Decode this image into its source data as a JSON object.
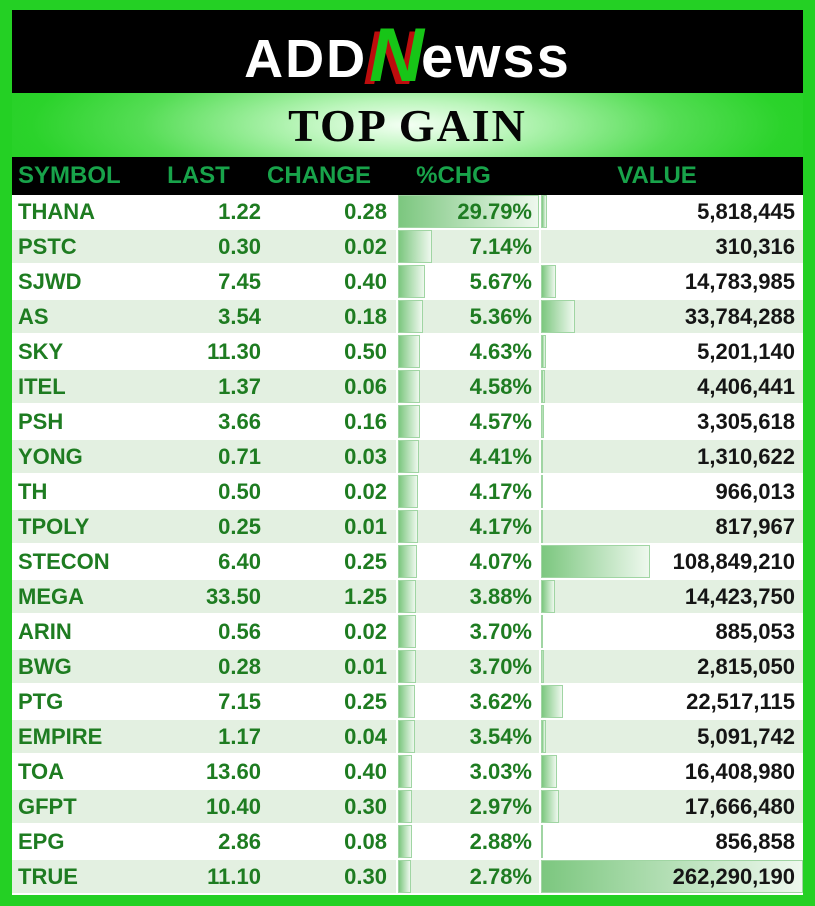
{
  "logo": {
    "part1": "ADD",
    "accent": "N",
    "part2": "ewss"
  },
  "title": "TOP GAIN",
  "table": {
    "columns": [
      "SYMBOL",
      "LAST",
      "CHANGE",
      "%CHG",
      "VALUE"
    ],
    "rows": [
      {
        "symbol": "THANA",
        "last": "1.22",
        "change": "0.28",
        "pct": "29.79%",
        "pct_num": 29.79,
        "value": "5,818,445",
        "value_num": 5818445
      },
      {
        "symbol": "PSTC",
        "last": "0.30",
        "change": "0.02",
        "pct": "7.14%",
        "pct_num": 7.14,
        "value": "310,316",
        "value_num": 310316
      },
      {
        "symbol": "SJWD",
        "last": "7.45",
        "change": "0.40",
        "pct": "5.67%",
        "pct_num": 5.67,
        "value": "14,783,985",
        "value_num": 14783985
      },
      {
        "symbol": "AS",
        "last": "3.54",
        "change": "0.18",
        "pct": "5.36%",
        "pct_num": 5.36,
        "value": "33,784,288",
        "value_num": 33784288
      },
      {
        "symbol": "SKY",
        "last": "11.30",
        "change": "0.50",
        "pct": "4.63%",
        "pct_num": 4.63,
        "value": "5,201,140",
        "value_num": 5201140
      },
      {
        "symbol": "ITEL",
        "last": "1.37",
        "change": "0.06",
        "pct": "4.58%",
        "pct_num": 4.58,
        "value": "4,406,441",
        "value_num": 4406441
      },
      {
        "symbol": "PSH",
        "last": "3.66",
        "change": "0.16",
        "pct": "4.57%",
        "pct_num": 4.57,
        "value": "3,305,618",
        "value_num": 3305618
      },
      {
        "symbol": "YONG",
        "last": "0.71",
        "change": "0.03",
        "pct": "4.41%",
        "pct_num": 4.41,
        "value": "1,310,622",
        "value_num": 1310622
      },
      {
        "symbol": "TH",
        "last": "0.50",
        "change": "0.02",
        "pct": "4.17%",
        "pct_num": 4.17,
        "value": "966,013",
        "value_num": 966013
      },
      {
        "symbol": "TPOLY",
        "last": "0.25",
        "change": "0.01",
        "pct": "4.17%",
        "pct_num": 4.17,
        "value": "817,967",
        "value_num": 817967
      },
      {
        "symbol": "STECON",
        "last": "6.40",
        "change": "0.25",
        "pct": "4.07%",
        "pct_num": 4.07,
        "value": "108,849,210",
        "value_num": 108849210
      },
      {
        "symbol": "MEGA",
        "last": "33.50",
        "change": "1.25",
        "pct": "3.88%",
        "pct_num": 3.88,
        "value": "14,423,750",
        "value_num": 14423750
      },
      {
        "symbol": "ARIN",
        "last": "0.56",
        "change": "0.02",
        "pct": "3.70%",
        "pct_num": 3.7,
        "value": "885,053",
        "value_num": 885053
      },
      {
        "symbol": "BWG",
        "last": "0.28",
        "change": "0.01",
        "pct": "3.70%",
        "pct_num": 3.7,
        "value": "2,815,050",
        "value_num": 2815050
      },
      {
        "symbol": "PTG",
        "last": "7.15",
        "change": "0.25",
        "pct": "3.62%",
        "pct_num": 3.62,
        "value": "22,517,115",
        "value_num": 22517115
      },
      {
        "symbol": "EMPIRE",
        "last": "1.17",
        "change": "0.04",
        "pct": "3.54%",
        "pct_num": 3.54,
        "value": "5,091,742",
        "value_num": 5091742
      },
      {
        "symbol": "TOA",
        "last": "13.60",
        "change": "0.40",
        "pct": "3.03%",
        "pct_num": 3.03,
        "value": "16,408,980",
        "value_num": 16408980
      },
      {
        "symbol": "GFPT",
        "last": "10.40",
        "change": "0.30",
        "pct": "2.97%",
        "pct_num": 2.97,
        "value": "17,666,480",
        "value_num": 17666480
      },
      {
        "symbol": "EPG",
        "last": "2.86",
        "change": "0.08",
        "pct": "2.88%",
        "pct_num": 2.88,
        "value": "856,858",
        "value_num": 856858
      },
      {
        "symbol": "TRUE",
        "last": "11.10",
        "change": "0.30",
        "pct": "2.78%",
        "pct_num": 2.78,
        "value": "262,290,190",
        "value_num": 262290190
      }
    ]
  },
  "colors": {
    "frame_green": "#24d024",
    "header_text_green": "#18a34a",
    "row_text_green": "#1e7c21",
    "value_text": "#151515",
    "alt_row_bg": "#e3f0e1",
    "bar_green": "#7cc77f",
    "bar_border": "#a0d5a3",
    "logo_green": "#17c517",
    "logo_red": "#bd0d0d"
  },
  "chart_data": {
    "type": "table",
    "title": "TOP GAIN",
    "columns": [
      "SYMBOL",
      "LAST",
      "CHANGE",
      "%CHG",
      "VALUE"
    ],
    "rows": [
      [
        "THANA",
        1.22,
        0.28,
        29.79,
        5818445
      ],
      [
        "PSTC",
        0.3,
        0.02,
        7.14,
        310316
      ],
      [
        "SJWD",
        7.45,
        0.4,
        5.67,
        14783985
      ],
      [
        "AS",
        3.54,
        0.18,
        5.36,
        33784288
      ],
      [
        "SKY",
        11.3,
        0.5,
        4.63,
        5201140
      ],
      [
        "ITEL",
        1.37,
        0.06,
        4.58,
        4406441
      ],
      [
        "PSH",
        3.66,
        0.16,
        4.57,
        3305618
      ],
      [
        "YONG",
        0.71,
        0.03,
        4.41,
        1310622
      ],
      [
        "TH",
        0.5,
        0.02,
        4.17,
        966013
      ],
      [
        "TPOLY",
        0.25,
        0.01,
        4.17,
        817967
      ],
      [
        "STECON",
        6.4,
        0.25,
        4.07,
        108849210
      ],
      [
        "MEGA",
        33.5,
        1.25,
        3.88,
        14423750
      ],
      [
        "ARIN",
        0.56,
        0.02,
        3.7,
        885053
      ],
      [
        "BWG",
        0.28,
        0.01,
        3.7,
        2815050
      ],
      [
        "PTG",
        7.15,
        0.25,
        3.62,
        22517115
      ],
      [
        "EMPIRE",
        1.17,
        0.04,
        3.54,
        5091742
      ],
      [
        "TOA",
        13.6,
        0.4,
        3.03,
        16408980
      ],
      [
        "GFPT",
        10.4,
        0.3,
        2.97,
        17666480
      ],
      [
        "EPG",
        2.86,
        0.08,
        2.88,
        856858
      ],
      [
        "TRUE",
        11.1,
        0.3,
        2.78,
        262290190
      ]
    ],
    "layout_hints": {
      "pct_chg_data_bars_scaled_to_max": 29.79,
      "value_data_bars_scaled_to_max": 262290190,
      "row_striping": "white / light-green alternating"
    }
  }
}
